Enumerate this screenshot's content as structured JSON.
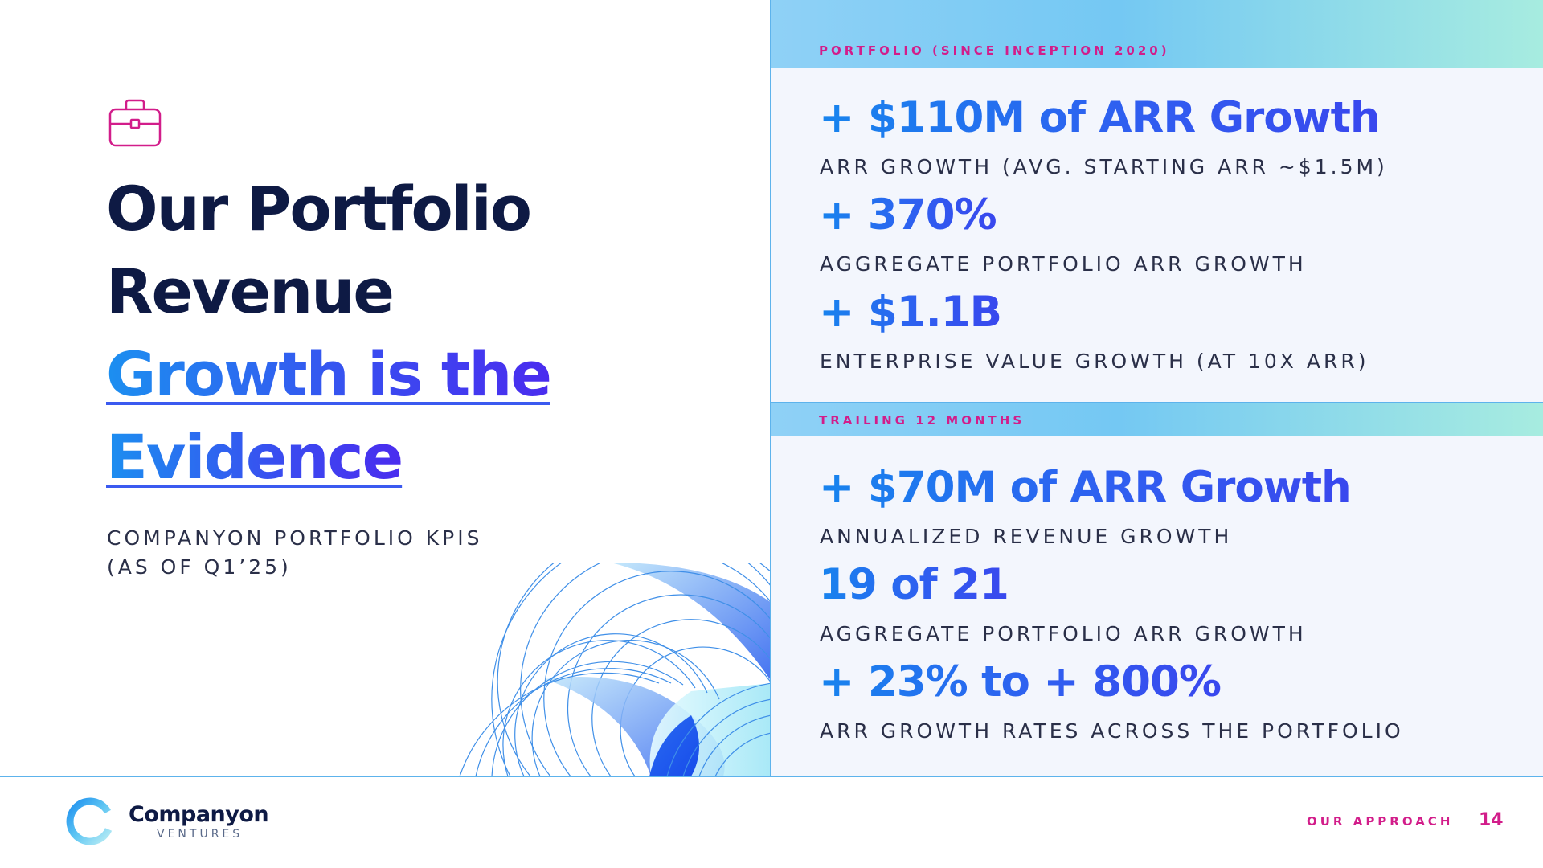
{
  "title": {
    "line1": "Our Portfolio",
    "line2": "Revenue",
    "line3": "Growth is the",
    "line4": "Evidence"
  },
  "subtitle": {
    "line1": "COMPANYON PORTFOLIO KPIS",
    "line2": "(AS OF Q1’25)"
  },
  "icons": {
    "header_icon": "briefcase-icon",
    "logo": "ring-logo-icon"
  },
  "sections": [
    {
      "label": "PORTFOLIO (SINCE INCEPTION 2020)",
      "kpis": [
        {
          "value": "+ $110M of ARR Growth",
          "label": "ARR GROWTH (AVG. STARTING ARR ~$1.5M)"
        },
        {
          "value": "+ 370%",
          "label": "AGGREGATE PORTFOLIO ARR GROWTH"
        },
        {
          "value": "+ $1.1B",
          "label": "ENTERPRISE VALUE GROWTH (AT 10X ARR)"
        }
      ]
    },
    {
      "label": "TRAILING 12 MONTHS",
      "kpis": [
        {
          "value": "+ $70M of ARR Growth",
          "label": "ANNUALIZED REVENUE GROWTH"
        },
        {
          "value": "19 of 21",
          "label": "AGGREGATE PORTFOLIO ARR GROWTH"
        },
        {
          "value": "+ 23% to + 800%",
          "label": "ARR GROWTH RATES ACROSS THE PORTFOLIO"
        }
      ]
    }
  ],
  "footer": {
    "brand": "Companyon",
    "brand_sub": "VENTURES",
    "section": "OUR APPROACH",
    "page": "14"
  },
  "colors": {
    "navy": "#0e1a44",
    "blue": "#1784ee",
    "indigo": "#3947ee",
    "magenta": "#d21d8a",
    "cyan": "#74c8f3",
    "panel_bg": "#f3f6fd"
  }
}
